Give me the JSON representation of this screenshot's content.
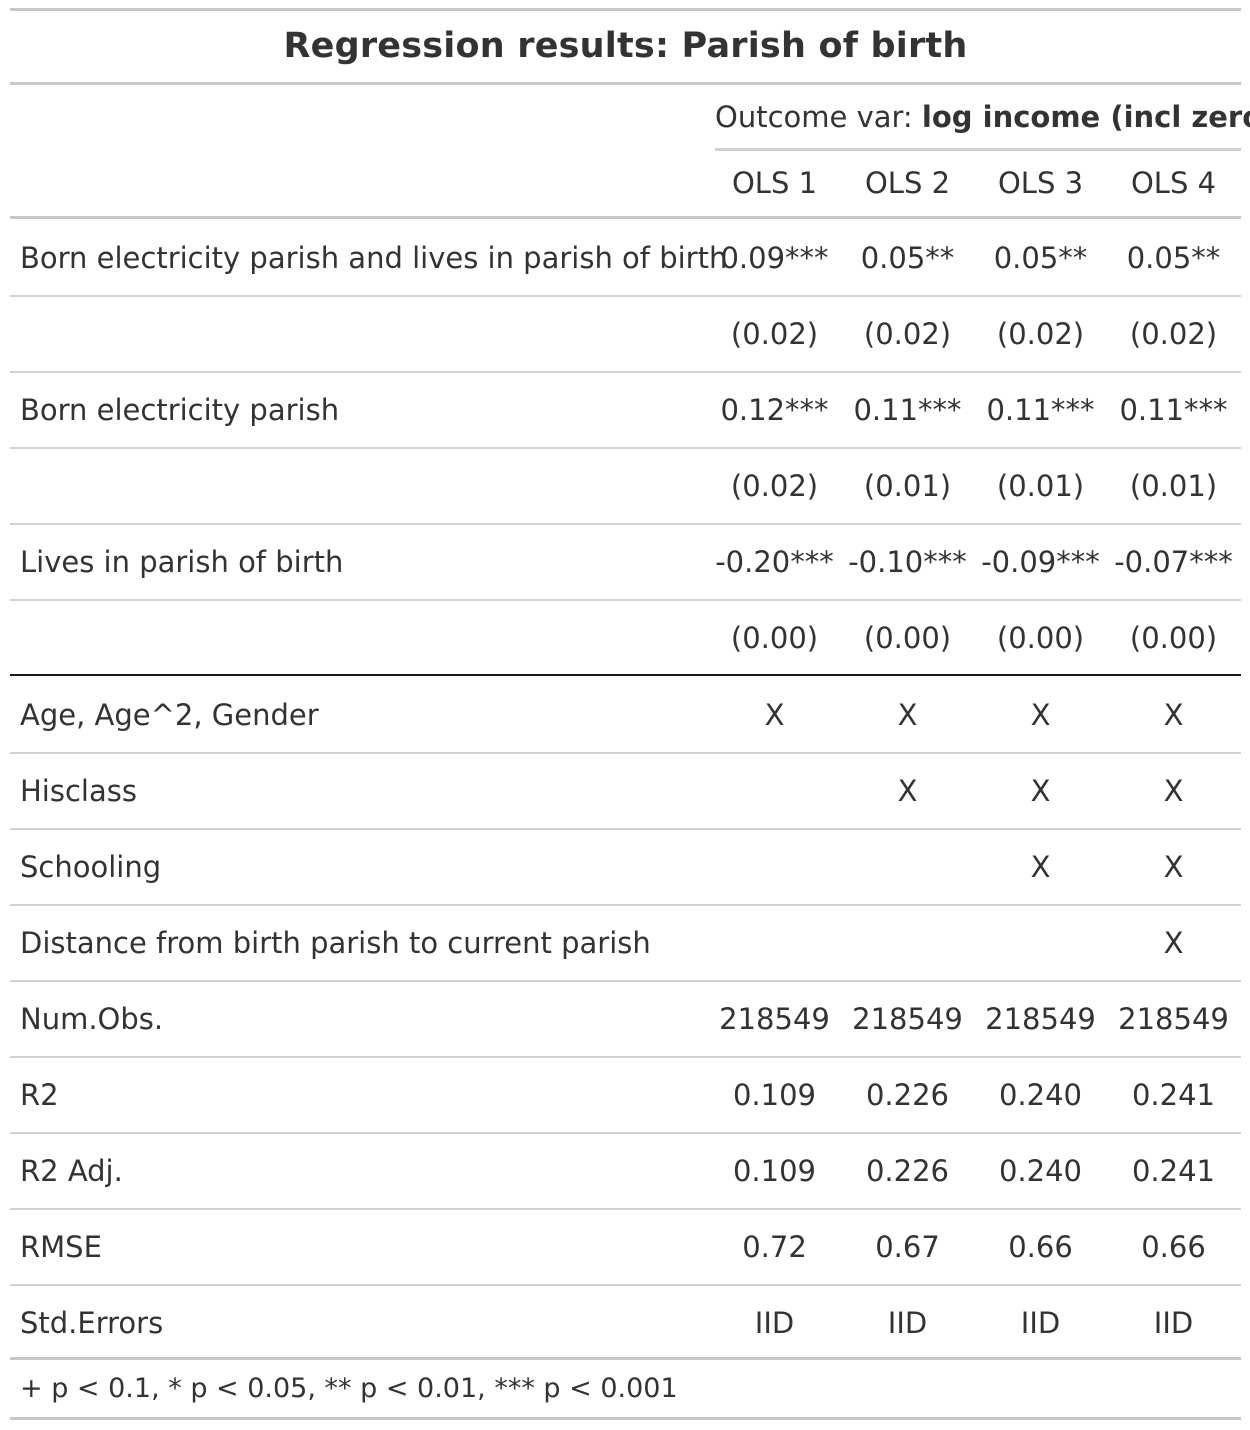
{
  "title": "Regression results: Parish of birth",
  "spanner": {
    "prefix": "Outcome var: ",
    "bold": "log income (incl zero)"
  },
  "columns": [
    "OLS 1",
    "OLS 2",
    "OLS 3",
    "OLS 4"
  ],
  "coef_rows": [
    {
      "label": "Born electricity parish and lives in parish of birth",
      "values": [
        "0.09***",
        "0.05**",
        "0.05**",
        "0.05**"
      ]
    },
    {
      "label": "",
      "values": [
        "(0.02)",
        "(0.02)",
        "(0.02)",
        "(0.02)"
      ]
    },
    {
      "label": "Born electricity parish",
      "values": [
        "0.12***",
        "0.11***",
        "0.11***",
        "0.11***"
      ]
    },
    {
      "label": "",
      "values": [
        "(0.02)",
        "(0.01)",
        "(0.01)",
        "(0.01)"
      ]
    },
    {
      "label": "Lives in parish of birth",
      "values": [
        "-0.20***",
        "-0.10***",
        "-0.09***",
        "-0.07***"
      ]
    },
    {
      "label": "",
      "values": [
        "(0.00)",
        "(0.00)",
        "(0.00)",
        "(0.00)"
      ]
    }
  ],
  "control_rows": [
    {
      "label": "Age, Age^2, Gender",
      "values": [
        "X",
        "X",
        "X",
        "X"
      ]
    },
    {
      "label": "Hisclass",
      "values": [
        "",
        "X",
        "X",
        "X"
      ]
    },
    {
      "label": "Schooling",
      "values": [
        "",
        "",
        "X",
        "X"
      ]
    },
    {
      "label": "Distance from birth parish to current parish",
      "values": [
        "",
        "",
        "",
        "X"
      ]
    },
    {
      "label": "Num.Obs.",
      "values": [
        "218549",
        "218549",
        "218549",
        "218549"
      ]
    },
    {
      "label": "R2",
      "values": [
        "0.109",
        "0.226",
        "0.240",
        "0.241"
      ]
    },
    {
      "label": "R2 Adj.",
      "values": [
        "0.109",
        "0.226",
        "0.240",
        "0.241"
      ]
    },
    {
      "label": "RMSE",
      "values": [
        "0.72",
        "0.67",
        "0.66",
        "0.66"
      ]
    },
    {
      "label": "Std.Errors",
      "values": [
        "IID",
        "IID",
        "IID",
        "IID"
      ]
    }
  ],
  "footnote": "+ p < 0.1, * p < 0.05, ** p < 0.01, *** p < 0.001"
}
